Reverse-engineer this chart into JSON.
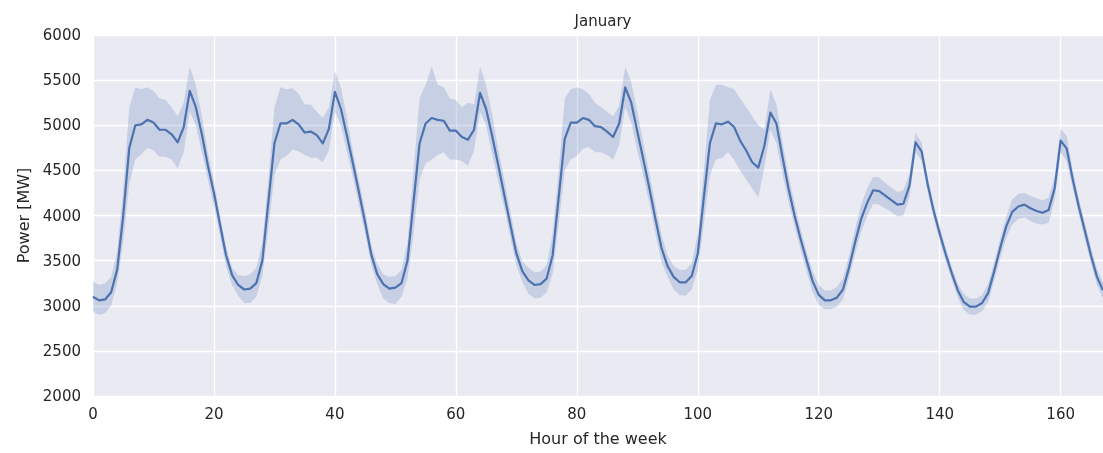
{
  "chart_data": {
    "type": "line",
    "title": "January",
    "xlabel": "Hour of the week",
    "ylabel": "Power [MW]",
    "x": [
      0,
      1,
      2,
      3,
      4,
      5,
      6,
      7,
      8,
      9,
      10,
      11,
      12,
      13,
      14,
      15,
      16,
      17,
      18,
      19,
      20,
      21,
      22,
      23,
      24,
      25,
      26,
      27,
      28,
      29,
      30,
      31,
      32,
      33,
      34,
      35,
      36,
      37,
      38,
      39,
      40,
      41,
      42,
      43,
      44,
      45,
      46,
      47,
      48,
      49,
      50,
      51,
      52,
      53,
      54,
      55,
      56,
      57,
      58,
      59,
      60,
      61,
      62,
      63,
      64,
      65,
      66,
      67,
      68,
      69,
      70,
      71,
      72,
      73,
      74,
      75,
      76,
      77,
      78,
      79,
      80,
      81,
      82,
      83,
      84,
      85,
      86,
      87,
      88,
      89,
      90,
      91,
      92,
      93,
      94,
      95,
      96,
      97,
      98,
      99,
      100,
      101,
      102,
      103,
      104,
      105,
      106,
      107,
      108,
      109,
      110,
      111,
      112,
      113,
      114,
      115,
      116,
      117,
      118,
      119,
      120,
      121,
      122,
      123,
      124,
      125,
      126,
      127,
      128,
      129,
      130,
      131,
      132,
      133,
      134,
      135,
      136,
      137,
      138,
      139,
      140,
      141,
      142,
      143,
      144,
      145,
      146,
      147,
      148,
      149,
      150,
      151,
      152,
      153,
      154,
      155,
      156,
      157,
      158,
      159,
      160,
      161,
      162,
      163,
      164,
      165,
      166,
      167
    ],
    "series": [
      {
        "color": "#4c72b0",
        "values": [
          3100,
          3060,
          3070,
          3150,
          3400,
          4000,
          4750,
          5000,
          5010,
          5060,
          5030,
          4950,
          4950,
          4900,
          4810,
          4980,
          5380,
          5200,
          4900,
          4550,
          4250,
          3900,
          3560,
          3340,
          3230,
          3180,
          3190,
          3250,
          3500,
          4150,
          4800,
          5020,
          5020,
          5060,
          5010,
          4920,
          4930,
          4890,
          4800,
          4960,
          5370,
          5180,
          4880,
          4570,
          4250,
          3920,
          3570,
          3350,
          3240,
          3190,
          3200,
          3250,
          3500,
          4150,
          4800,
          5020,
          5080,
          5060,
          5050,
          4940,
          4940,
          4870,
          4840,
          4950,
          5360,
          5180,
          4880,
          4560,
          4230,
          3900,
          3580,
          3380,
          3280,
          3230,
          3240,
          3300,
          3560,
          4200,
          4850,
          5030,
          5030,
          5080,
          5060,
          4990,
          4980,
          4930,
          4870,
          5020,
          5420,
          5250,
          4930,
          4620,
          4300,
          3960,
          3640,
          3440,
          3320,
          3260,
          3260,
          3330,
          3580,
          4200,
          4800,
          5020,
          5010,
          5040,
          4980,
          4830,
          4720,
          4590,
          4530,
          4770,
          5140,
          5020,
          4650,
          4300,
          4000,
          3740,
          3500,
          3270,
          3120,
          3060,
          3060,
          3090,
          3180,
          3420,
          3700,
          3960,
          4140,
          4280,
          4270,
          4220,
          4170,
          4120,
          4130,
          4330,
          4810,
          4710,
          4350,
          4050,
          3800,
          3570,
          3360,
          3170,
          3040,
          2990,
          2990,
          3030,
          3140,
          3380,
          3640,
          3880,
          4040,
          4100,
          4120,
          4080,
          4050,
          4030,
          4060,
          4300,
          4830,
          4740,
          4400,
          4100,
          3830,
          3560,
          3320,
          3170
        ],
        "lower": [
          2930,
          2900,
          2920,
          3000,
          3250,
          3700,
          4350,
          4620,
          4680,
          4750,
          4720,
          4650,
          4650,
          4620,
          4520,
          4700,
          5150,
          5000,
          4700,
          4400,
          4100,
          3780,
          3440,
          3230,
          3110,
          3030,
          3030,
          3100,
          3330,
          3850,
          4450,
          4620,
          4660,
          4730,
          4710,
          4670,
          4640,
          4640,
          4590,
          4720,
          5150,
          5000,
          4700,
          4420,
          4100,
          3800,
          3460,
          3240,
          3080,
          3030,
          3020,
          3100,
          3300,
          3800,
          4400,
          4580,
          4620,
          4670,
          4700,
          4620,
          4620,
          4600,
          4550,
          4720,
          5150,
          5000,
          4680,
          4380,
          4080,
          3760,
          3450,
          3260,
          3130,
          3080,
          3090,
          3150,
          3350,
          3900,
          4500,
          4620,
          4660,
          4740,
          4760,
          4700,
          4700,
          4670,
          4620,
          4780,
          5200,
          5030,
          4720,
          4430,
          4140,
          3800,
          3490,
          3320,
          3180,
          3120,
          3110,
          3180,
          3400,
          3900,
          4450,
          4620,
          4640,
          4700,
          4620,
          4500,
          4400,
          4300,
          4200,
          4530,
          4950,
          4800,
          4460,
          4150,
          3880,
          3620,
          3380,
          3150,
          3010,
          2960,
          2960,
          2990,
          3070,
          3300,
          3570,
          3820,
          3990,
          4130,
          4120,
          4080,
          4040,
          3990,
          4000,
          4200,
          4700,
          4610,
          4270,
          3970,
          3720,
          3490,
          3290,
          3090,
          2950,
          2900,
          2900,
          2940,
          3040,
          3270,
          3530,
          3750,
          3900,
          3960,
          3980,
          3940,
          3910,
          3900,
          3920,
          4170,
          4700,
          4600,
          4300,
          4010,
          3740,
          3470,
          3230,
          3080
        ],
        "upper": [
          3270,
          3230,
          3250,
          3320,
          3600,
          4300,
          5200,
          5420,
          5400,
          5420,
          5380,
          5300,
          5280,
          5200,
          5100,
          5250,
          5650,
          5450,
          5100,
          4700,
          4380,
          4000,
          3650,
          3420,
          3340,
          3330,
          3350,
          3420,
          3700,
          4400,
          5200,
          5420,
          5400,
          5410,
          5350,
          5230,
          5230,
          5150,
          5080,
          5200,
          5600,
          5420,
          5080,
          4700,
          4380,
          4050,
          3680,
          3460,
          3350,
          3320,
          3330,
          3400,
          3700,
          4500,
          5300,
          5450,
          5650,
          5450,
          5420,
          5300,
          5280,
          5200,
          5250,
          5230,
          5650,
          5450,
          5120,
          4740,
          4400,
          4050,
          3700,
          3490,
          3420,
          3370,
          3380,
          3450,
          3800,
          4500,
          5300,
          5400,
          5420,
          5400,
          5350,
          5250,
          5200,
          5150,
          5100,
          5220,
          5650,
          5480,
          5150,
          4800,
          4460,
          4120,
          3780,
          3560,
          3440,
          3400,
          3400,
          3470,
          3800,
          4500,
          5280,
          5450,
          5450,
          5420,
          5400,
          5300,
          5200,
          5100,
          5000,
          4950,
          5400,
          5230,
          4820,
          4450,
          4130,
          3850,
          3600,
          3380,
          3230,
          3170,
          3170,
          3210,
          3300,
          3550,
          3850,
          4120,
          4300,
          4430,
          4420,
          4360,
          4310,
          4260,
          4280,
          4460,
          4920,
          4810,
          4430,
          4130,
          3880,
          3640,
          3430,
          3240,
          3130,
          3080,
          3080,
          3120,
          3240,
          3480,
          3740,
          3990,
          4180,
          4240,
          4250,
          4220,
          4190,
          4170,
          4200,
          4430,
          4960,
          4880,
          4500,
          4190,
          3920,
          3650,
          3410,
          3260
        ]
      }
    ],
    "xlim": [
      0,
      167
    ],
    "xticks": [
      0,
      20,
      40,
      60,
      80,
      100,
      120,
      140,
      160
    ],
    "ylim": [
      2000,
      6000
    ],
    "yticks": [
      2000,
      2500,
      3000,
      3500,
      4000,
      4500,
      5000,
      5500,
      6000
    ],
    "grid": true
  }
}
